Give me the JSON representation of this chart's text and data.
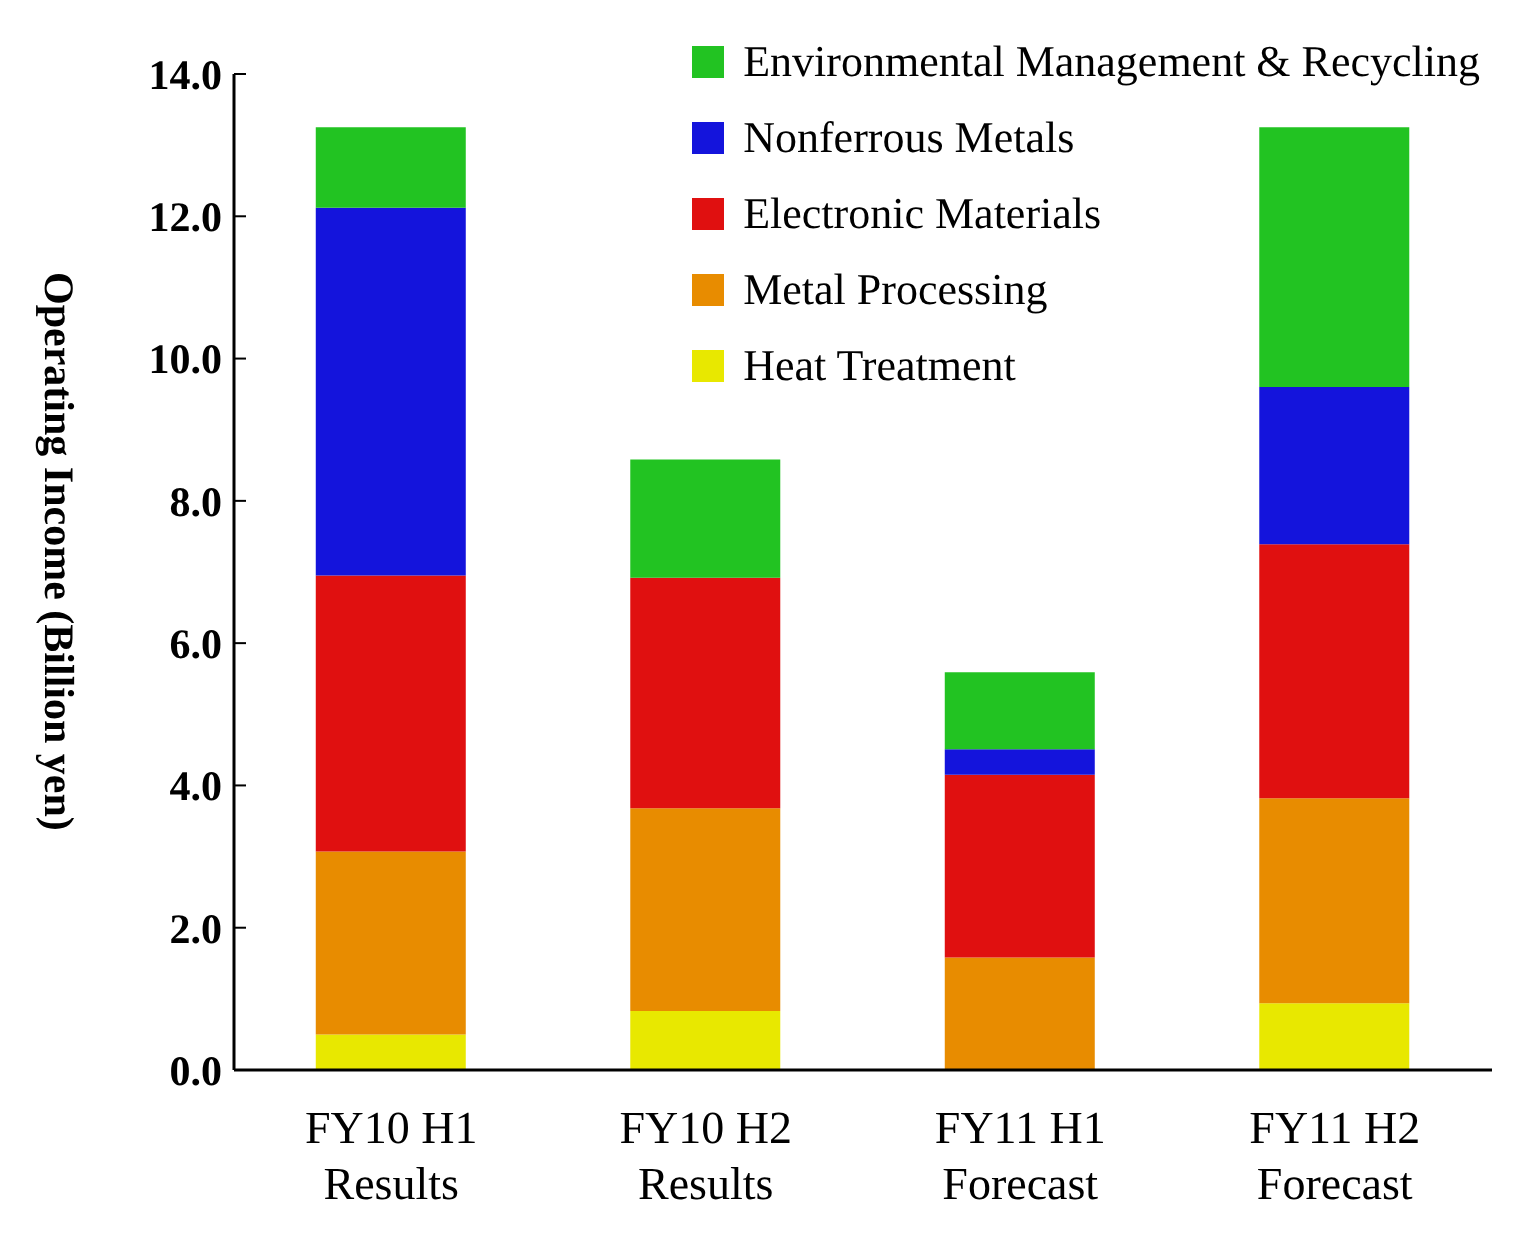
{
  "chart_data": {
    "type": "bar",
    "stacked": true,
    "ylabel": "Operating Income (Billion yen)",
    "categories": [
      "FY10 H1\nResults",
      "FY10 H2\nResults",
      "FY11 H1\nForecast",
      "FY11 H2\nForecast"
    ],
    "series": [
      {
        "name": "Heat Treatment",
        "color": "#e8e800",
        "values": [
          0.5,
          0.83,
          0,
          0.94
        ]
      },
      {
        "name": "Metal Processing",
        "color": "#e88c00",
        "values": [
          2.57,
          2.85,
          1.58,
          2.88
        ]
      },
      {
        "name": "Electronic Materials",
        "color": "#e01010",
        "values": [
          3.88,
          3.24,
          2.57,
          3.57
        ]
      },
      {
        "name": "Nonferrous Metals",
        "color": "#1414dc",
        "values": [
          5.17,
          0,
          0.36,
          2.21
        ]
      },
      {
        "name": "Environmental Management & Recycling",
        "color": "#22c322",
        "values": [
          1.13,
          1.66,
          1.08,
          3.65
        ]
      }
    ],
    "ylim": [
      0,
      14
    ],
    "yticks": [
      {
        "value": 0,
        "label": "0.0"
      },
      {
        "value": 2,
        "label": "2.0"
      },
      {
        "value": 4,
        "label": "4.0"
      },
      {
        "value": 6,
        "label": "6.0"
      },
      {
        "value": 8,
        "label": "8.0"
      },
      {
        "value": 10,
        "label": "10.0"
      },
      {
        "value": 12,
        "label": "12.0"
      },
      {
        "value": 14,
        "label": "14.0"
      }
    ],
    "grid": false,
    "legend": "top right"
  }
}
